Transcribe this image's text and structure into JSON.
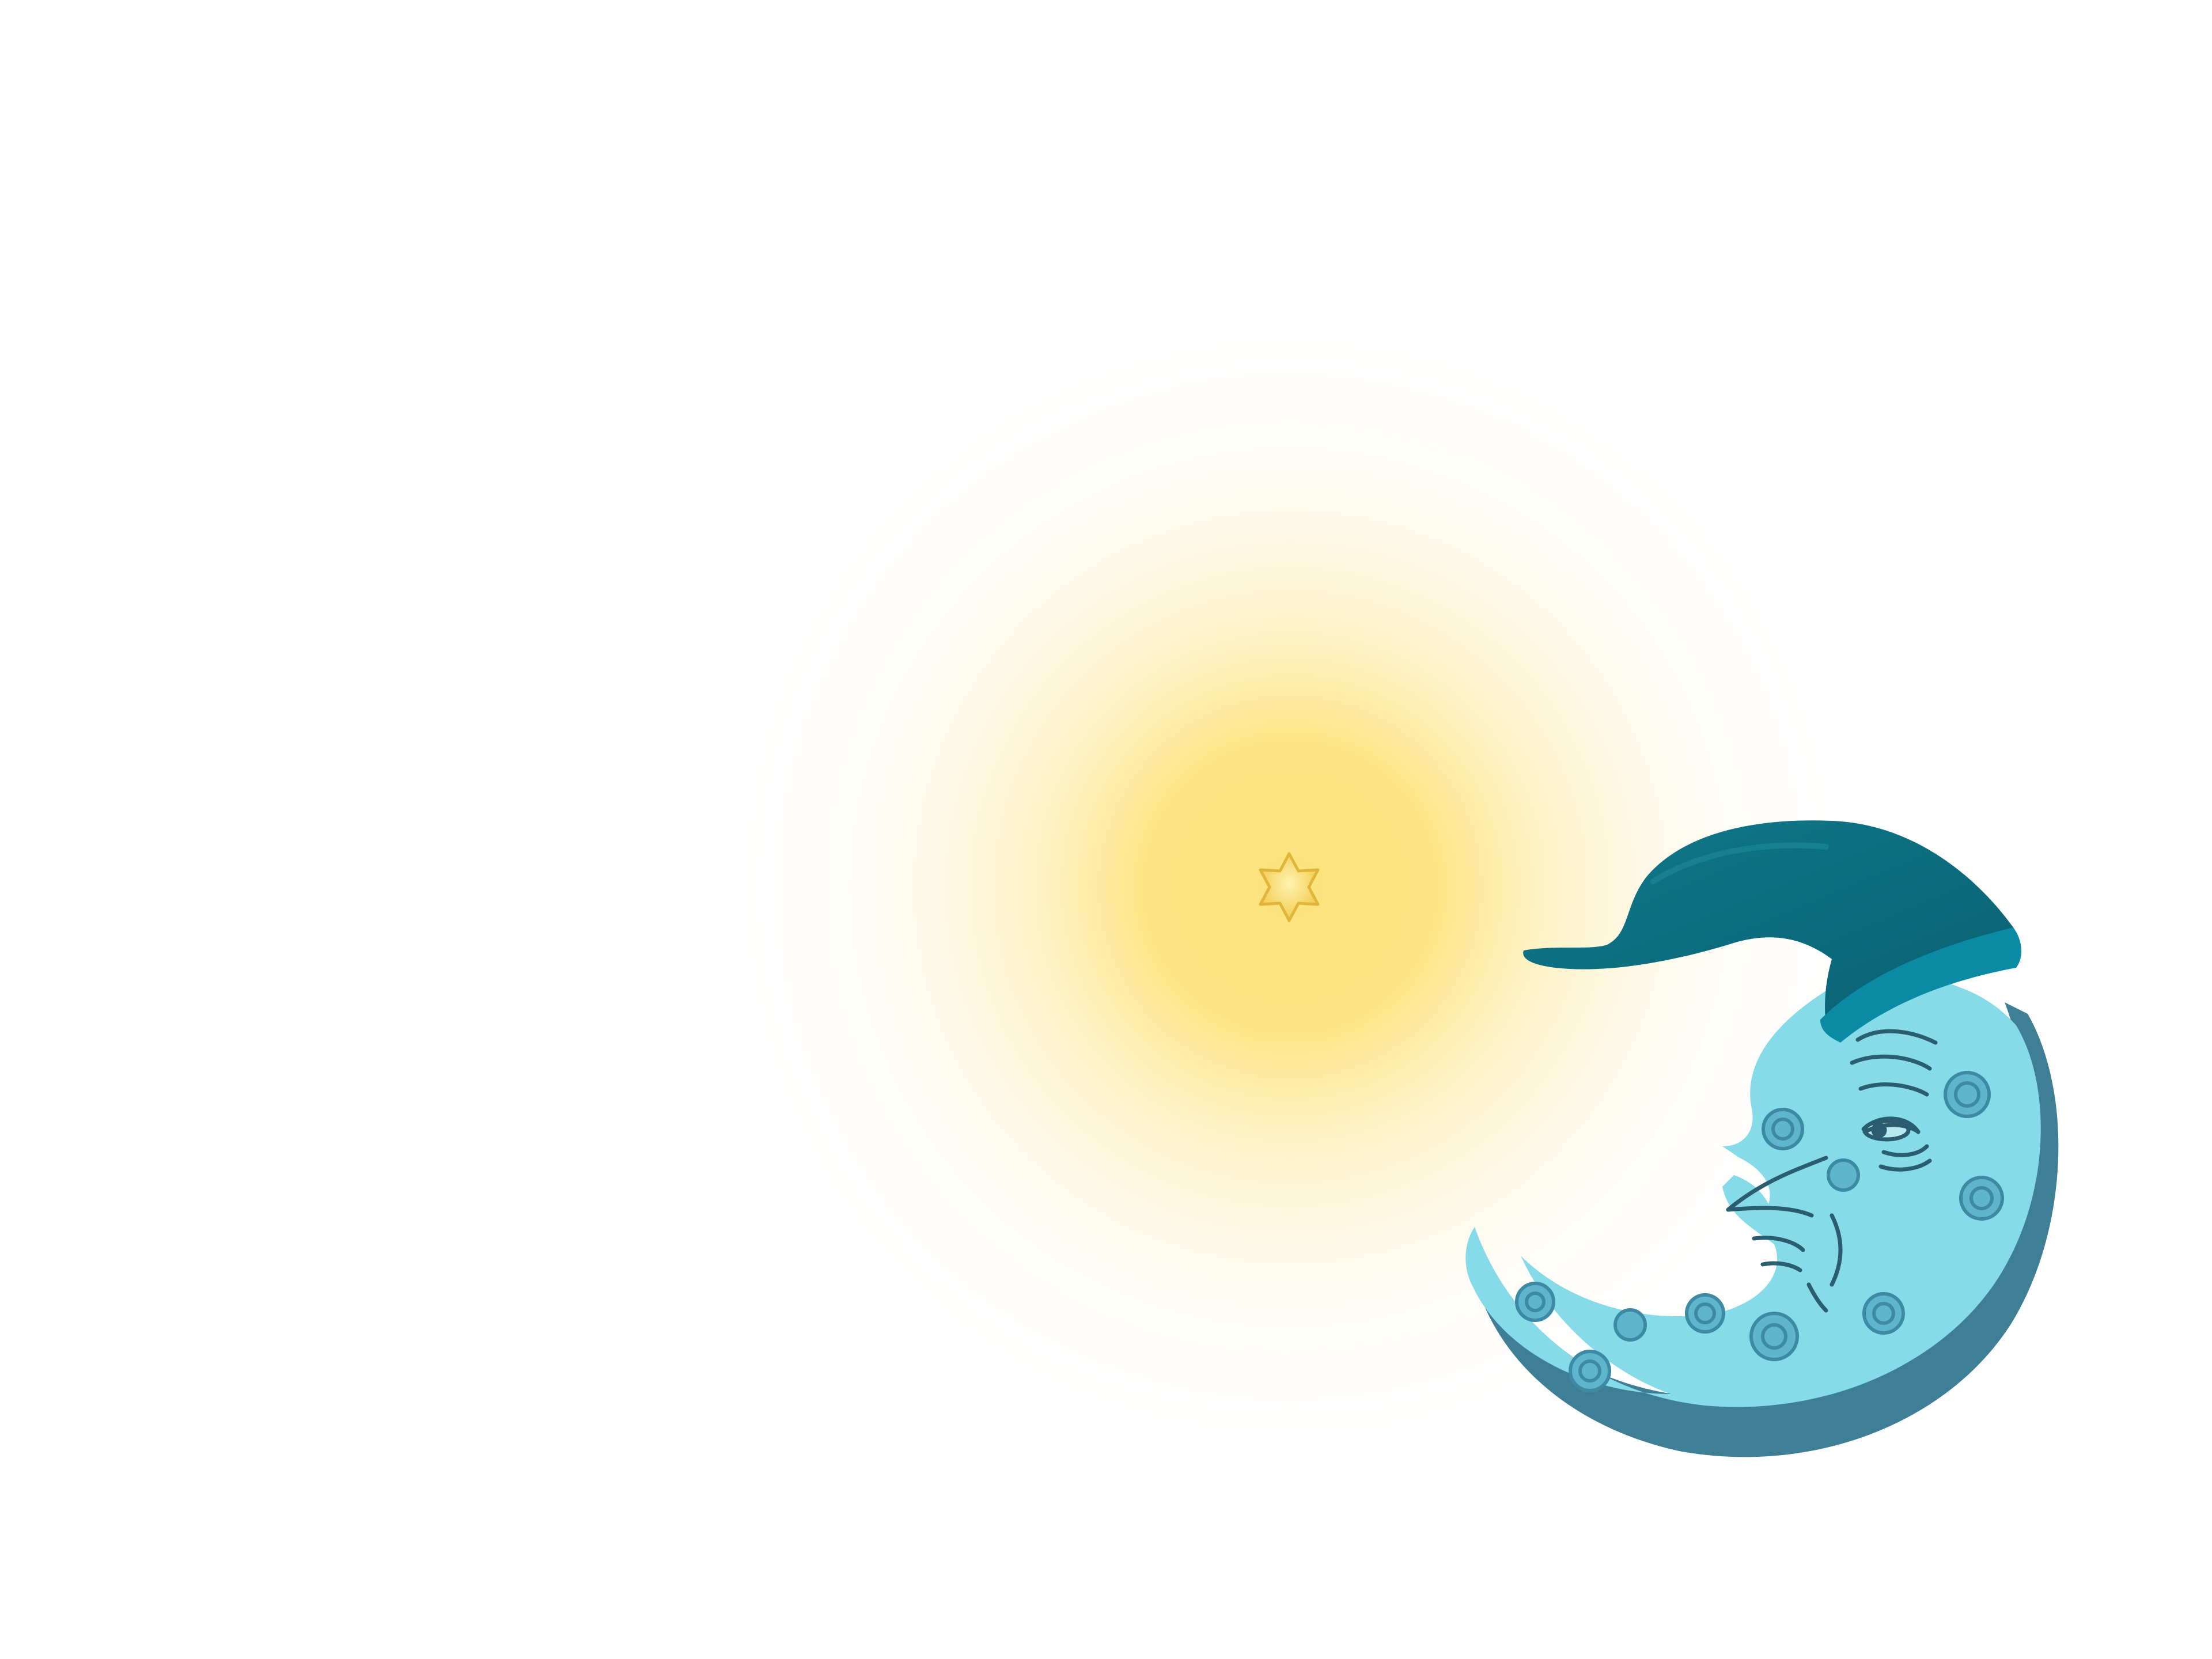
{
  "scene": {
    "background_color": "#ffffff",
    "glow_color": "#fde37c",
    "star_color": "#f6d35c",
    "star_outline_color": "#e0b53a",
    "moon_face_color": "#86dbe8",
    "moon_shadow_color": "#3f7f95",
    "moon_spot_color": "#3e8aa6",
    "hat_color": "#0b6e80",
    "hat_band_color": "#0b8aa3",
    "face_line_color": "#2a5d70"
  },
  "elements": [
    {
      "name": "glow",
      "kind": "radial-glow"
    },
    {
      "name": "star-icon",
      "kind": "six-pointed-star"
    },
    {
      "name": "crescent-moon",
      "kind": "crescent-moon-with-face"
    },
    {
      "name": "sleeping-cap",
      "kind": "nightcap"
    }
  ]
}
